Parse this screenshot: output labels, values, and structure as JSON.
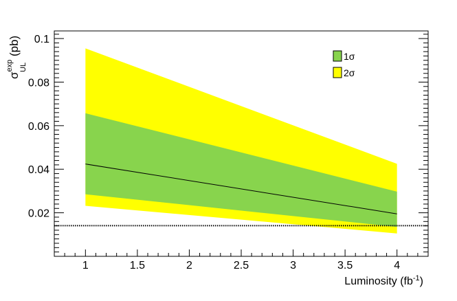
{
  "chart_data": {
    "type": "area",
    "title": "",
    "xlabel": "Luminosity (fb",
    "xlabel_sup": "-1",
    "xlabel_close": ")",
    "ylabel_sigma": "σ",
    "ylabel_sup": "exp",
    "ylabel_sub": "UL",
    "ylabel_unit": " (pb)",
    "xlim": [
      0.7,
      4.3
    ],
    "ylim": [
      0.0,
      0.1035
    ],
    "x_ticks": [
      1,
      1.5,
      2,
      2.5,
      3,
      3.5,
      4
    ],
    "x_tick_labels": [
      "1",
      "1.5",
      "2",
      "2.5",
      "3",
      "3.5",
      "4"
    ],
    "y_ticks": [
      0.02,
      0.04,
      0.06,
      0.08,
      0.1
    ],
    "y_tick_labels": [
      "0.02",
      "0.04",
      "0.06",
      "0.08",
      "0.1"
    ],
    "grid": false,
    "legend_position": "top-right",
    "series": [
      {
        "name": "2σ",
        "kind": "band",
        "x": [
          1,
          4
        ],
        "lower": [
          0.0232,
          0.0105
        ],
        "upper": [
          0.0955,
          0.0425
        ],
        "color": "#ffff00"
      },
      {
        "name": "1σ",
        "kind": "band",
        "x": [
          1,
          4
        ],
        "lower": [
          0.0285,
          0.0135
        ],
        "upper": [
          0.0657,
          0.0297
        ],
        "color": "#88d44d"
      },
      {
        "kind": "line",
        "x": [
          1,
          4
        ],
        "y": [
          0.0424,
          0.0195
        ],
        "color": "#000000",
        "style": "solid"
      },
      {
        "kind": "hline",
        "y": 0.0141,
        "color": "#000000",
        "style": "dotted"
      }
    ],
    "legend": [
      {
        "label": "1σ",
        "color": "#88d44d"
      },
      {
        "label": "2σ",
        "color": "#ffff00"
      }
    ]
  }
}
